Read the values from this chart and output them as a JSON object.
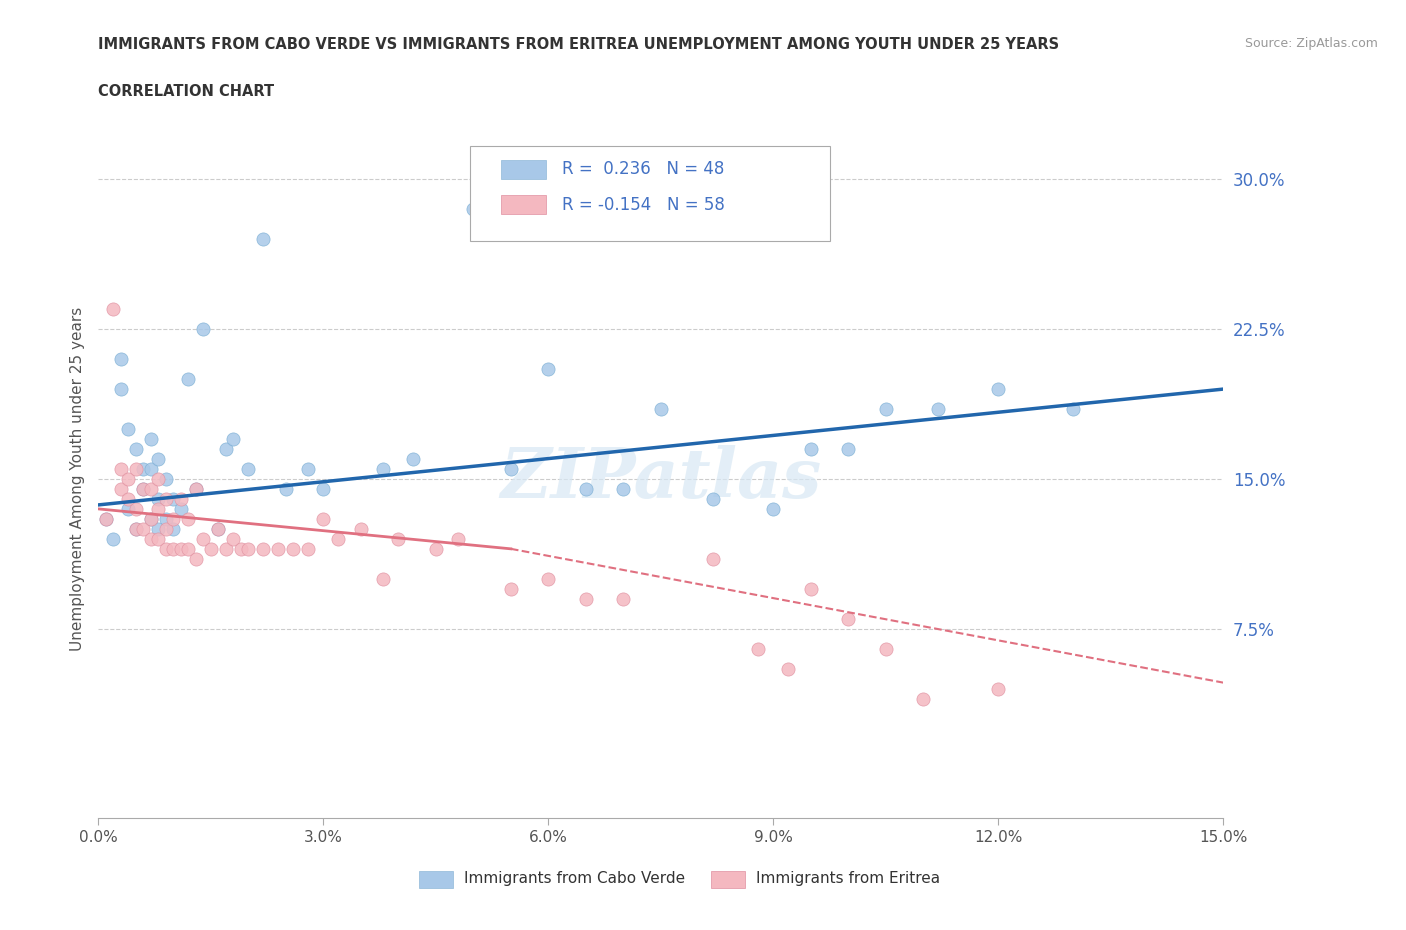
{
  "title_line1": "IMMIGRANTS FROM CABO VERDE VS IMMIGRANTS FROM ERITREA UNEMPLOYMENT AMONG YOUTH UNDER 25 YEARS",
  "title_line2": "CORRELATION CHART",
  "source_text": "Source: ZipAtlas.com",
  "ylabel": "Unemployment Among Youth under 25 years",
  "xlim": [
    0.0,
    0.15
  ],
  "ylim": [
    -0.02,
    0.32
  ],
  "yticks": [
    0.075,
    0.15,
    0.225,
    0.3
  ],
  "ytick_labels": [
    "7.5%",
    "15.0%",
    "22.5%",
    "30.0%"
  ],
  "xticks": [
    0.0,
    0.03,
    0.06,
    0.09,
    0.12,
    0.15
  ],
  "xtick_labels": [
    "0.0%",
    "3.0%",
    "6.0%",
    "9.0%",
    "12.0%",
    "15.0%"
  ],
  "blue_color": "#a8c8e8",
  "pink_color": "#f4b8c0",
  "trendline_blue_color": "#2166ac",
  "trendline_pink_color": "#e07080",
  "legend_text_color": "#4472c4",
  "watermark": "ZIPatlas",
  "cabo_verde_x": [
    0.001,
    0.002,
    0.003,
    0.003,
    0.004,
    0.004,
    0.005,
    0.005,
    0.006,
    0.006,
    0.007,
    0.007,
    0.007,
    0.008,
    0.008,
    0.008,
    0.009,
    0.009,
    0.01,
    0.01,
    0.011,
    0.012,
    0.013,
    0.014,
    0.016,
    0.017,
    0.018,
    0.02,
    0.022,
    0.025,
    0.028,
    0.03,
    0.038,
    0.042,
    0.05,
    0.055,
    0.06,
    0.065,
    0.07,
    0.075,
    0.082,
    0.09,
    0.095,
    0.1,
    0.105,
    0.112,
    0.12,
    0.13
  ],
  "cabo_verde_y": [
    0.13,
    0.12,
    0.195,
    0.21,
    0.135,
    0.175,
    0.125,
    0.165,
    0.145,
    0.155,
    0.13,
    0.155,
    0.17,
    0.125,
    0.14,
    0.16,
    0.13,
    0.15,
    0.125,
    0.14,
    0.135,
    0.2,
    0.145,
    0.225,
    0.125,
    0.165,
    0.17,
    0.155,
    0.27,
    0.145,
    0.155,
    0.145,
    0.155,
    0.16,
    0.285,
    0.155,
    0.205,
    0.145,
    0.145,
    0.185,
    0.14,
    0.135,
    0.165,
    0.165,
    0.185,
    0.185,
    0.195,
    0.185
  ],
  "eritrea_x": [
    0.001,
    0.002,
    0.003,
    0.003,
    0.004,
    0.004,
    0.005,
    0.005,
    0.005,
    0.006,
    0.006,
    0.007,
    0.007,
    0.007,
    0.008,
    0.008,
    0.008,
    0.009,
    0.009,
    0.009,
    0.01,
    0.01,
    0.011,
    0.011,
    0.012,
    0.012,
    0.013,
    0.013,
    0.014,
    0.015,
    0.016,
    0.017,
    0.018,
    0.019,
    0.02,
    0.022,
    0.024,
    0.026,
    0.028,
    0.03,
    0.032,
    0.035,
    0.038,
    0.04,
    0.045,
    0.048,
    0.055,
    0.06,
    0.065,
    0.07,
    0.082,
    0.088,
    0.092,
    0.095,
    0.1,
    0.105,
    0.11,
    0.12
  ],
  "eritrea_y": [
    0.13,
    0.235,
    0.145,
    0.155,
    0.14,
    0.15,
    0.125,
    0.135,
    0.155,
    0.125,
    0.145,
    0.13,
    0.12,
    0.145,
    0.12,
    0.135,
    0.15,
    0.115,
    0.125,
    0.14,
    0.115,
    0.13,
    0.115,
    0.14,
    0.115,
    0.13,
    0.11,
    0.145,
    0.12,
    0.115,
    0.125,
    0.115,
    0.12,
    0.115,
    0.115,
    0.115,
    0.115,
    0.115,
    0.115,
    0.13,
    0.12,
    0.125,
    0.1,
    0.12,
    0.115,
    0.12,
    0.095,
    0.1,
    0.09,
    0.09,
    0.11,
    0.065,
    0.055,
    0.095,
    0.08,
    0.065,
    0.04,
    0.045
  ],
  "trendline_blue_x0": 0.0,
  "trendline_blue_y0": 0.137,
  "trendline_blue_x1": 0.15,
  "trendline_blue_y1": 0.195,
  "trendline_pink_solid_x0": 0.0,
  "trendline_pink_solid_y0": 0.135,
  "trendline_pink_solid_x1": 0.055,
  "trendline_pink_solid_y1": 0.115,
  "trendline_pink_dash_x0": 0.055,
  "trendline_pink_dash_y0": 0.115,
  "trendline_pink_dash_x1": 0.15,
  "trendline_pink_dash_y1": 0.048
}
